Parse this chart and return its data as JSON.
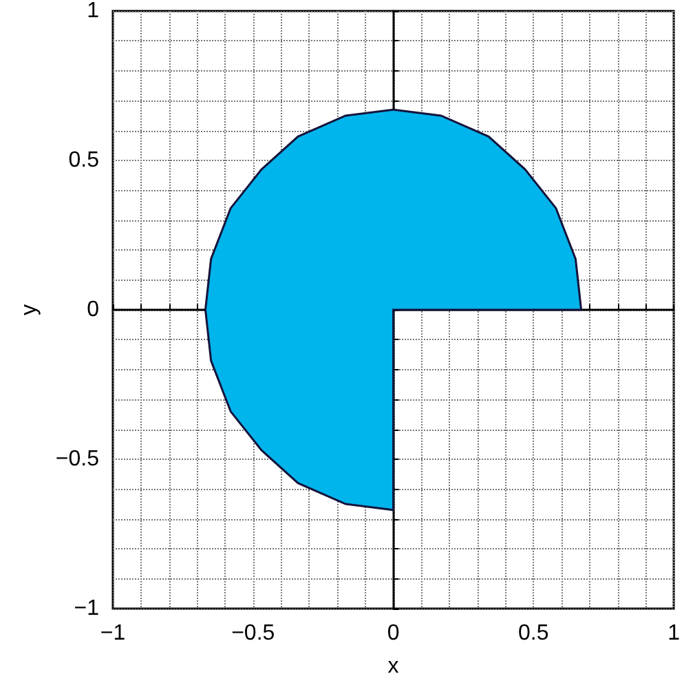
{
  "chart_data": {
    "type": "area",
    "xlabel": "x",
    "ylabel": "y",
    "xlim": [
      -1,
      1
    ],
    "ylim": [
      -1,
      1
    ],
    "xticks": [
      {
        "value": -1,
        "label": "−1"
      },
      {
        "value": -0.9,
        "label": null
      },
      {
        "value": -0.8,
        "label": null
      },
      {
        "value": -0.7,
        "label": null
      },
      {
        "value": -0.6,
        "label": null
      },
      {
        "value": -0.5,
        "label": "−0.5"
      },
      {
        "value": -0.4,
        "label": null
      },
      {
        "value": -0.3,
        "label": null
      },
      {
        "value": -0.2,
        "label": null
      },
      {
        "value": -0.1,
        "label": null
      },
      0,
      {
        "value": 0.1,
        "label": null
      },
      {
        "value": 0.2,
        "label": null
      },
      {
        "value": 0.3,
        "label": null
      },
      {
        "value": 0.4,
        "label": null
      },
      0.5,
      {
        "value": 0.6,
        "label": null
      },
      {
        "value": 0.7,
        "label": null
      },
      {
        "value": 0.8,
        "label": null
      },
      {
        "value": 0.9,
        "label": null
      },
      1
    ],
    "yticks": [
      {
        "value": -1,
        "label": "−1"
      },
      {
        "value": -0.9,
        "label": null
      },
      {
        "value": -0.8,
        "label": null
      },
      {
        "value": -0.7,
        "label": null
      },
      {
        "value": -0.6,
        "label": null
      },
      {
        "value": -0.5,
        "label": "−0.5"
      },
      {
        "value": -0.4,
        "label": null
      },
      {
        "value": -0.3,
        "label": null
      },
      {
        "value": -0.2,
        "label": null
      },
      {
        "value": -0.1,
        "label": null
      },
      0,
      {
        "value": 0.1,
        "label": null
      },
      {
        "value": 0.2,
        "label": null
      },
      {
        "value": 0.3,
        "label": null
      },
      {
        "value": 0.4,
        "label": null
      },
      0.5,
      {
        "value": 0.6,
        "label": null
      },
      {
        "value": 0.7,
        "label": null
      },
      {
        "value": 0.8,
        "label": null
      },
      {
        "value": 0.9,
        "label": null
      },
      1
    ],
    "grid": true,
    "line_style": "dotted",
    "series": [
      {
        "color": "#00b4ec",
        "x": [
          0,
          0.67,
          0.65,
          0.58,
          0.47,
          0.34,
          0.17,
          0,
          -0.17,
          -0.34,
          -0.47,
          -0.58,
          -0.65,
          -0.67,
          -0.65,
          -0.58,
          -0.47,
          -0.34,
          -0.17,
          0,
          0
        ],
        "values": [
          0,
          0,
          0.17,
          0.34,
          0.47,
          0.58,
          0.65,
          0.67,
          0.65,
          0.58,
          0.47,
          0.34,
          0.17,
          0,
          -0.17,
          -0.34,
          -0.47,
          -0.58,
          -0.65,
          -0.67,
          0
        ]
      }
    ]
  }
}
